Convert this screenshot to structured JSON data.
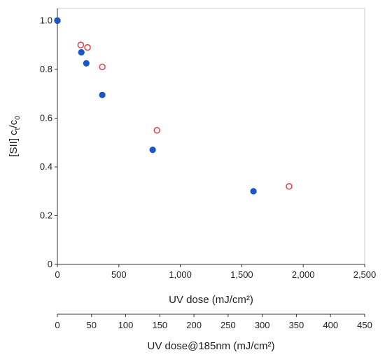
{
  "chart_data": {
    "type": "scatter",
    "title": "",
    "xlabel": "UV dose (mJ/cm²)",
    "ylabel": "[SII] ct/c0",
    "ylabel_parts": {
      "prefix": "[SII] c",
      "sub1": "t",
      "mid": "/c",
      "sub2": "0"
    },
    "xlim": [
      0,
      2500
    ],
    "ylim": [
      0,
      1.05
    ],
    "x_ticks": [
      0,
      500,
      1000,
      1500,
      2000,
      2500
    ],
    "x_tick_labels": [
      "0",
      "500",
      "1,000",
      "1,500",
      "2,000",
      "2,500"
    ],
    "y_ticks": [
      0,
      0.2,
      0.4,
      0.6,
      0.8,
      1.0
    ],
    "y_tick_labels": [
      "0",
      "0.2",
      "0.4",
      "0.6",
      "0.8",
      "1.0"
    ],
    "secondary_x_axis": {
      "label": "UV dose@185nm (mJ/cm²)",
      "xlim": [
        0,
        450
      ],
      "ticks": [
        0,
        50,
        100,
        150,
        200,
        250,
        300,
        350,
        400,
        450
      ],
      "tick_labels": [
        "0",
        "50",
        "100",
        "150",
        "200",
        "250",
        "300",
        "350",
        "400",
        "450"
      ]
    },
    "series": [
      {
        "marker": "filled-circle",
        "color": "#1a56c8",
        "x": [
          0,
          195,
          235,
          365,
          775,
          1595
        ],
        "y": [
          1.0,
          0.87,
          0.825,
          0.695,
          0.47,
          0.3
        ]
      },
      {
        "marker": "open-circle",
        "color": "#e0404a",
        "x": [
          0,
          190,
          245,
          365,
          810,
          1885
        ],
        "y": [
          1.0,
          0.9,
          0.89,
          0.81,
          0.55,
          0.32
        ]
      }
    ],
    "grid": false,
    "legend": "none"
  }
}
